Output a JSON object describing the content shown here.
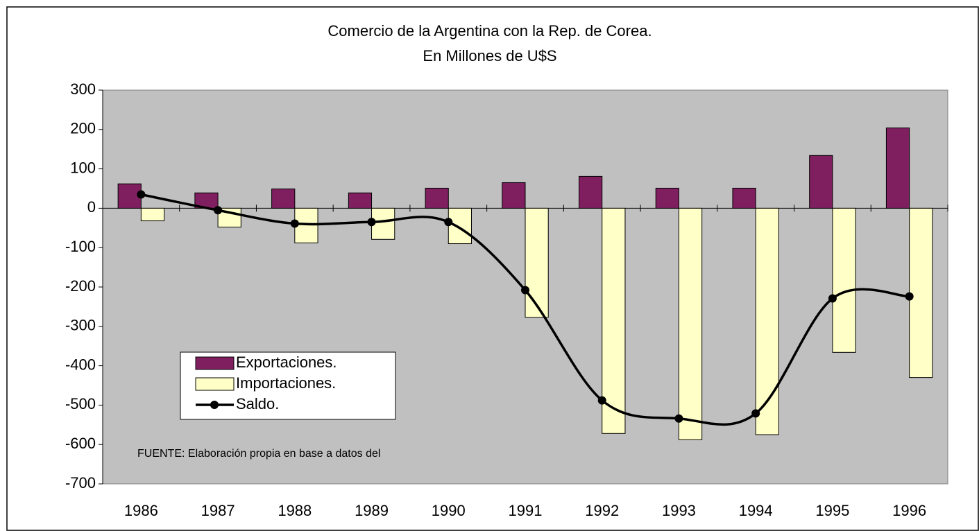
{
  "chart_data": {
    "type": "bar_line",
    "title": "Comercio de la Argentina con la Rep. de Corea.",
    "subtitle": "En Millones de U$S",
    "annotation": "FUENTE: Elaboración propia en base a datos del",
    "categories": [
      "1986",
      "1987",
      "1988",
      "1989",
      "1990",
      "1991",
      "1992",
      "1993",
      "1994",
      "1995",
      "1996"
    ],
    "series": [
      {
        "name": "Exportaciones.",
        "type": "bar",
        "color": "#7f1f5f",
        "values": [
          62,
          39,
          49,
          39,
          51,
          65,
          81,
          51,
          51,
          134,
          204
        ]
      },
      {
        "name": "Importaciones.",
        "type": "bar",
        "color": "#ffffc8",
        "values": [
          -32,
          -48,
          -88,
          -79,
          -90,
          -277,
          -572,
          -588,
          -575,
          -366,
          -430
        ]
      },
      {
        "name": "Saldo.",
        "type": "line",
        "color": "#000000",
        "values": [
          35,
          -5,
          -39,
          -35,
          -35,
          -208,
          -488,
          -534,
          -521,
          -229,
          -224
        ]
      }
    ],
    "ylim": [
      -700,
      300
    ],
    "yticks": [
      -700,
      -600,
      -500,
      -400,
      -300,
      -200,
      -100,
      0,
      100,
      200,
      300
    ],
    "plot_background": "#c0c0c0"
  }
}
